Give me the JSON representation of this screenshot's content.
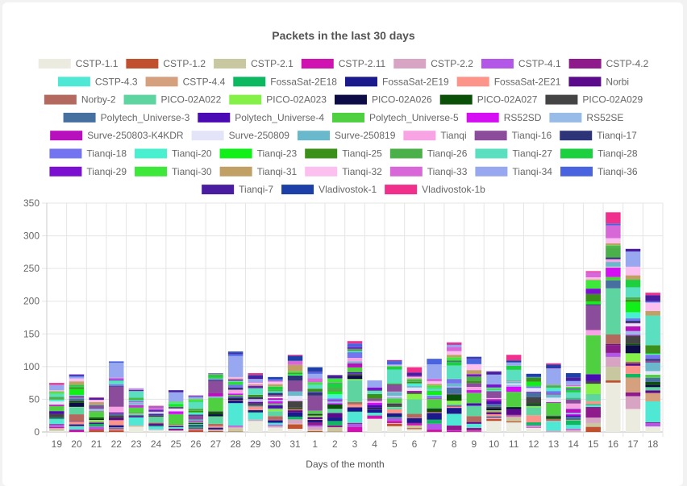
{
  "chart_data": {
    "type": "bar",
    "stacked": true,
    "title": "Packets in the last 30 days",
    "xlabel": "Days of the month",
    "ylabel": "",
    "ylim": [
      0,
      350
    ],
    "yticks": [
      0,
      50,
      100,
      150,
      200,
      250,
      300,
      350
    ],
    "legend_position": "top",
    "categories": [
      "19",
      "20",
      "21",
      "22",
      "23",
      "24",
      "25",
      "26",
      "27",
      "28",
      "29",
      "30",
      "31",
      "1",
      "2",
      "3",
      "4",
      "5",
      "6",
      "7",
      "8",
      "9",
      "10",
      "11",
      "12",
      "13",
      "14",
      "15",
      "16",
      "17",
      "18"
    ],
    "totals": [
      75,
      88,
      53,
      108,
      67,
      40,
      64,
      56,
      90,
      123,
      90,
      84,
      118,
      99,
      87,
      139,
      79,
      110,
      99,
      112,
      137,
      115,
      93,
      118,
      89,
      105,
      90,
      246,
      336,
      280,
      213
    ],
    "series": [
      {
        "name": "CSTP-1.1",
        "color": "#ecebe0"
      },
      {
        "name": "CSTP-1.2",
        "color": "#c0502e"
      },
      {
        "name": "CSTP-2.1",
        "color": "#c8c8a0"
      },
      {
        "name": "CSTP-2.11",
        "color": "#d012b0"
      },
      {
        "name": "CSTP-2.2",
        "color": "#d8a4c4"
      },
      {
        "name": "CSTP-4.1",
        "color": "#b257e8"
      },
      {
        "name": "CSTP-4.2",
        "color": "#8e1a8c"
      },
      {
        "name": "CSTP-4.3",
        "color": "#4ee8d4"
      },
      {
        "name": "CSTP-4.4",
        "color": "#d4a07e"
      },
      {
        "name": "FossaSat-2E18",
        "color": "#0cb860"
      },
      {
        "name": "FossaSat-2E19",
        "color": "#1a1a8c"
      },
      {
        "name": "FossaSat-2E21",
        "color": "#fc948a"
      },
      {
        "name": "Norbi",
        "color": "#5a0a8a"
      },
      {
        "name": "Norby-2",
        "color": "#b4695e"
      },
      {
        "name": "PICO-02A022",
        "color": "#5ed4a0"
      },
      {
        "name": "PICO-02A023",
        "color": "#84f048"
      },
      {
        "name": "PICO-02A026",
        "color": "#0e0c46"
      },
      {
        "name": "PICO-02A027",
        "color": "#0a5008"
      },
      {
        "name": "PICO-02A029",
        "color": "#444444"
      },
      {
        "name": "Polytech_Universe-3",
        "color": "#4670a0"
      },
      {
        "name": "Polytech_Universe-4",
        "color": "#4a0ab4"
      },
      {
        "name": "Polytech_Universe-5",
        "color": "#4ed040"
      },
      {
        "name": "RS52SD",
        "color": "#d60ef4"
      },
      {
        "name": "RS52SE",
        "color": "#98bce8"
      },
      {
        "name": "Surve-250803-K4KDR",
        "color": "#b810bc"
      },
      {
        "name": "Surve-250809",
        "color": "#e4e4f8"
      },
      {
        "name": "Surve-250819",
        "color": "#6ab8cc"
      },
      {
        "name": "Tianqi",
        "color": "#f8a4e4"
      },
      {
        "name": "Tianqi-16",
        "color": "#8c4c9c"
      },
      {
        "name": "Tianqi-17",
        "color": "#2e3478"
      },
      {
        "name": "Tianqi-18",
        "color": "#7474f0"
      },
      {
        "name": "Tianqi-20",
        "color": "#48f0d0"
      },
      {
        "name": "Tianqi-23",
        "color": "#10f018"
      },
      {
        "name": "Tianqi-25",
        "color": "#3a9018"
      },
      {
        "name": "Tianqi-26",
        "color": "#4cb04a"
      },
      {
        "name": "Tianqi-27",
        "color": "#5ae0c0"
      },
      {
        "name": "Tianqi-28",
        "color": "#1cd040"
      },
      {
        "name": "Tianqi-29",
        "color": "#7c10d0"
      },
      {
        "name": "Tianqi-30",
        "color": "#3ee83a"
      },
      {
        "name": "Tianqi-31",
        "color": "#c0a064"
      },
      {
        "name": "Tianqi-32",
        "color": "#fcc0f0"
      },
      {
        "name": "Tianqi-33",
        "color": "#d868d8"
      },
      {
        "name": "Tianqi-34",
        "color": "#98a8f0"
      },
      {
        "name": "Tianqi-36",
        "color": "#4a64e0"
      },
      {
        "name": "Tianqi-7",
        "color": "#4a1ca0"
      },
      {
        "name": "Vladivostok-1",
        "color": "#1c40a8"
      },
      {
        "name": "Vladivostok-1b",
        "color": "#f0308c"
      }
    ]
  }
}
